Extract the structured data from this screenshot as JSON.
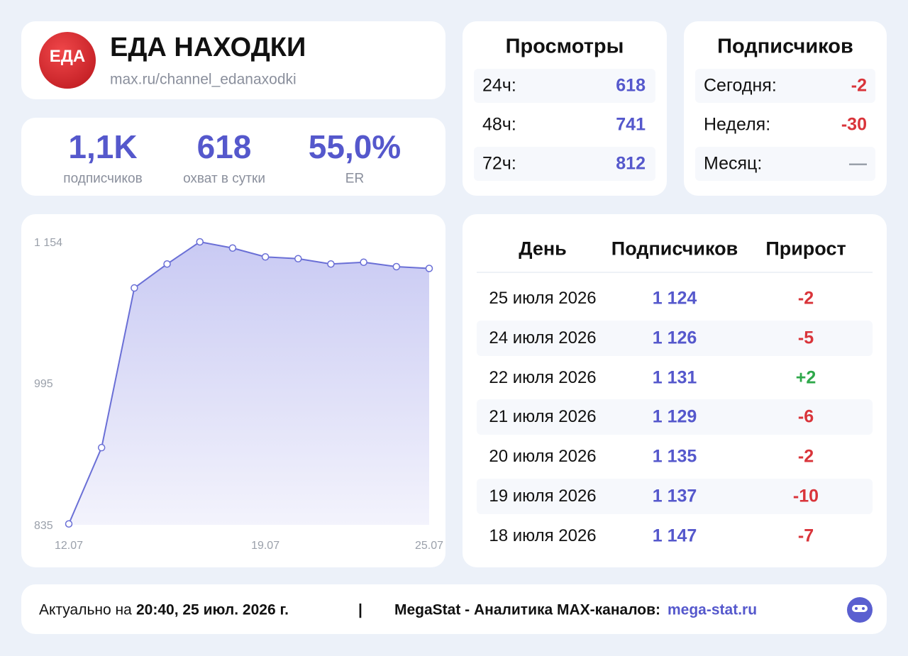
{
  "header": {
    "avatar_text": "ЕДА",
    "title": "ЕДА НАХОДКИ",
    "url": "max.ru/channel_edanaxodki"
  },
  "stats": [
    {
      "value": "1,1K",
      "label": "подписчиков"
    },
    {
      "value": "618",
      "label": "охват в сутки"
    },
    {
      "value": "55,0%",
      "label": "ER"
    }
  ],
  "views": {
    "title": "Просмотры",
    "rows": [
      [
        "24ч:",
        "618"
      ],
      [
        "48ч:",
        "741"
      ],
      [
        "72ч:",
        "812"
      ]
    ]
  },
  "subscribers": {
    "title": "Подписчиков",
    "rows": [
      [
        "Сегодня:",
        "-2"
      ],
      [
        "Неделя:",
        "-30"
      ],
      [
        "Месяц:",
        "—"
      ]
    ]
  },
  "table": {
    "headers": [
      "День",
      "Подписчиков",
      "Прирост"
    ],
    "rows": [
      [
        "25 июля 2026",
        "1 124",
        "-2"
      ],
      [
        "24 июля 2026",
        "1 126",
        "-5"
      ],
      [
        "22 июля 2026",
        "1 131",
        "+2"
      ],
      [
        "21 июля 2026",
        "1 129",
        "-6"
      ],
      [
        "20 июля 2026",
        "1 135",
        "-2"
      ],
      [
        "19 июля 2026",
        "1 137",
        "-10"
      ],
      [
        "18 июля 2026",
        "1 147",
        "-7"
      ]
    ]
  },
  "footer": {
    "prefix": "Актуально на",
    "time": "20:40, 25 июл. 2026 г.",
    "separator": "|",
    "brand": "MegaStat - Аналитика MAX-каналов:",
    "link": "mega-stat.ru"
  },
  "chart_data": {
    "type": "area",
    "color": "#6a6fd6",
    "categories": [
      "12.07",
      null,
      null,
      null,
      null,
      null,
      "19.07",
      null,
      null,
      null,
      null,
      "25.07"
    ],
    "values": [
      836,
      922,
      1102,
      1129,
      1154,
      1147,
      1137,
      1135,
      1129,
      1131,
      1126,
      1124
    ],
    "ylim": [
      835,
      1154
    ],
    "yticks": [
      {
        "value": 835,
        "label": "835"
      },
      {
        "value": 995,
        "label": "995"
      },
      {
        "value": 1154,
        "label": "1 154"
      }
    ]
  }
}
